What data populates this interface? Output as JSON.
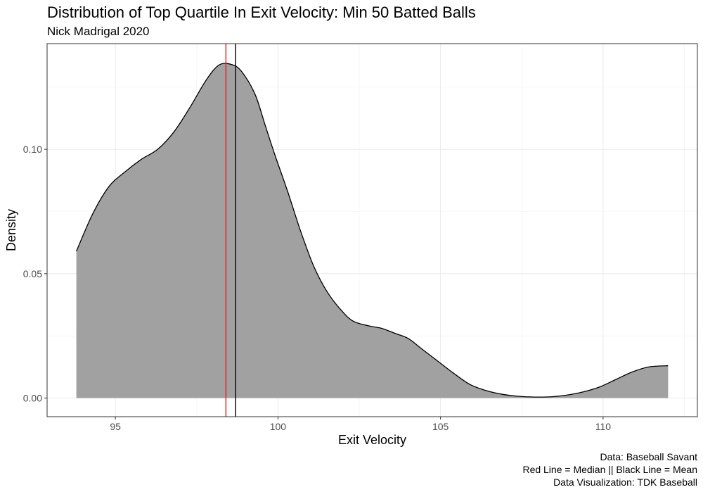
{
  "title": "Distribution of Top Quartile In Exit Velocity: Min 50 Batted Balls",
  "subtitle": "Nick Madrigal 2020",
  "caption": [
    "Data: Baseball Savant",
    "Red Line = Median || Black Line = Mean",
    "Data Visualization: TDK Baseball"
  ],
  "chart_data": {
    "type": "area",
    "title": "Distribution of Top Quartile In Exit Velocity: Min 50 Batted Balls",
    "subtitle": "Nick Madrigal 2020",
    "xlabel": "Exit Velocity",
    "ylabel": "Density",
    "xlim": [
      92.9,
      112.9
    ],
    "ylim": [
      -0.0075,
      0.1425
    ],
    "x_ticks": [
      95,
      100,
      105,
      110
    ],
    "x_tick_labels": [
      "95",
      "100",
      "105",
      "110"
    ],
    "y_ticks": [
      0.0,
      0.05,
      0.1
    ],
    "y_tick_labels": [
      "0.00",
      "0.05",
      "0.10"
    ],
    "grid": true,
    "fill_color": "#a1a1a1",
    "line_color": "#000000",
    "series": [
      {
        "x": [
          93.8,
          94.3,
          94.8,
          95.3,
          95.8,
          96.3,
          96.8,
          97.3,
          97.8,
          98.2,
          98.6,
          98.9,
          99.3,
          99.6,
          99.9,
          100.3,
          100.7,
          101.1,
          101.5,
          101.9,
          102.3,
          102.8,
          103.2,
          103.6,
          104.0,
          104.4,
          104.9,
          105.4,
          105.9,
          106.4,
          106.9,
          107.4,
          107.9,
          108.4,
          108.9,
          109.4,
          109.9,
          110.4,
          110.9,
          111.4,
          112.0
        ],
        "y": [
          0.059,
          0.074,
          0.085,
          0.091,
          0.096,
          0.1,
          0.107,
          0.117,
          0.128,
          0.134,
          0.134,
          0.131,
          0.122,
          0.11,
          0.098,
          0.083,
          0.067,
          0.053,
          0.043,
          0.036,
          0.031,
          0.029,
          0.028,
          0.026,
          0.024,
          0.02,
          0.015,
          0.01,
          0.0055,
          0.003,
          0.0015,
          0.0007,
          0.0004,
          0.0005,
          0.0012,
          0.0025,
          0.0045,
          0.0075,
          0.0105,
          0.0125,
          0.013
        ]
      }
    ],
    "reference_lines": [
      {
        "label": "Median",
        "x": 98.4,
        "color": "#e41a1c"
      },
      {
        "label": "Mean",
        "x": 98.7,
        "color": "#000000"
      }
    ]
  }
}
